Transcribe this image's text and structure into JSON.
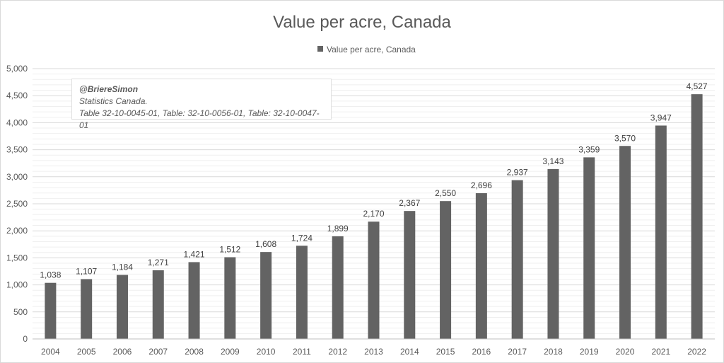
{
  "chart_data": {
    "type": "bar",
    "title": "Value per acre, Canada",
    "legend": {
      "label": "Value per acre, Canada",
      "position": "top"
    },
    "categories": [
      "2004",
      "2005",
      "2006",
      "2007",
      "2008",
      "2009",
      "2010",
      "2011",
      "2012",
      "2013",
      "2014",
      "2015",
      "2016",
      "2017",
      "2018",
      "2019",
      "2020",
      "2021",
      "2022"
    ],
    "series": [
      {
        "name": "Value per acre, Canada",
        "values": [
          1038,
          1107,
          1184,
          1271,
          1421,
          1512,
          1608,
          1724,
          1899,
          2170,
          2367,
          2550,
          2696,
          2937,
          3143,
          3359,
          3570,
          3947,
          4527
        ]
      }
    ],
    "data_labels": [
      "1,038",
      "1,107",
      "1,184",
      "1,271",
      "1,421",
      "1,512",
      "1,608",
      "1,724",
      "1,899",
      "2,170",
      "2,367",
      "2,550",
      "2,696",
      "2,937",
      "3,143",
      "3,359",
      "3,570",
      "3,947",
      "4,527"
    ],
    "ylim": [
      0,
      5000
    ],
    "y_ticks": [
      "0",
      "500",
      "1,000",
      "1,500",
      "2,000",
      "2,500",
      "3,000",
      "3,500",
      "4,000",
      "4,500",
      "5,000"
    ],
    "xlabel": "",
    "ylabel": "",
    "grid": "major and minor horizontal",
    "bar_color": "#636363"
  },
  "annotation": {
    "handle": "@BriereSimon",
    "source": "Statistics Canada.",
    "tables": "Table 32-10-0045-01, Table: 32-10-0056-01, Table: 32-10-0047-01"
  }
}
